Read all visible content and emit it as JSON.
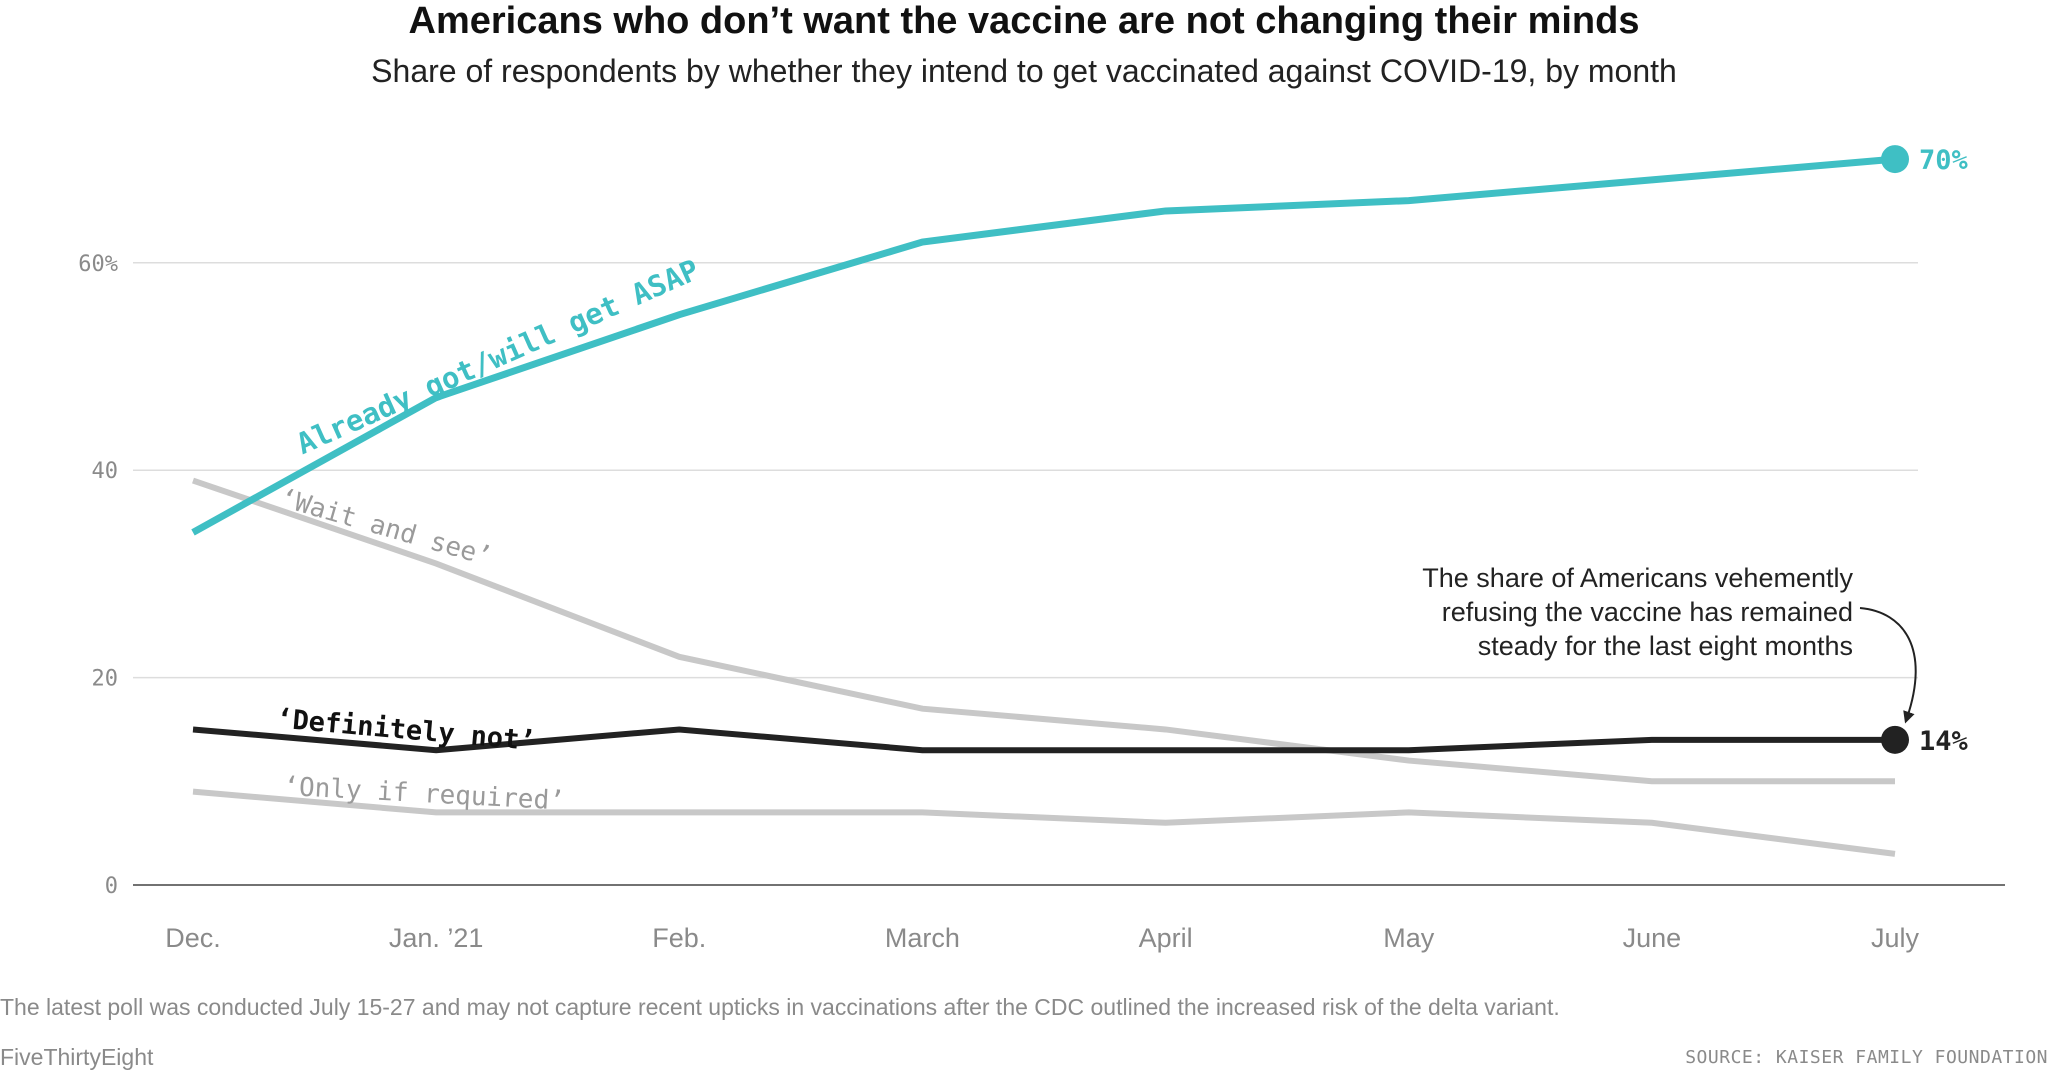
{
  "title": "Americans who don’t want the vaccine are not changing their minds",
  "subtitle": "Share of respondents by whether they intend to get vaccinated against COVID-19, by month",
  "note": "The latest poll was conducted July 15-27 and may not capture recent upticks in vaccinations after the CDC outlined the increased risk of the delta variant.",
  "brand": "FiveThirtyEight",
  "source": "SOURCE: KAISER FAMILY FOUNDATION",
  "chart_data": {
    "type": "line",
    "title": "Americans who don’t want the vaccine are not changing their minds",
    "subtitle": "Share of respondents by whether they intend to get vaccinated against COVID-19, by month",
    "xlabel": "",
    "ylabel": "",
    "categories": [
      "Dec.",
      "Jan. ’21",
      "Feb.",
      "March",
      "April",
      "May",
      "June",
      "July"
    ],
    "ylim": [
      0,
      70
    ],
    "yticks": [
      0,
      20,
      40,
      60
    ],
    "ytick_labels": [
      "0",
      "20",
      "40",
      "60%"
    ],
    "grid": true,
    "series": [
      {
        "name": "Already got/will get ASAP",
        "color": "#3fbfc4",
        "values": [
          34,
          47,
          55,
          62,
          65,
          66,
          68,
          70
        ],
        "end_label": "70%"
      },
      {
        "name": "‘Wait and see’",
        "color": "#c8c8c8",
        "values": [
          39,
          31,
          22,
          17,
          15,
          12,
          10,
          10
        ]
      },
      {
        "name": "‘Definitely not’",
        "color": "#222222",
        "values": [
          15,
          13,
          15,
          13,
          13,
          13,
          14,
          14
        ],
        "end_label": "14%"
      },
      {
        "name": "‘Only if required’",
        "color": "#c8c8c8",
        "values": [
          9,
          7,
          7,
          7,
          6,
          7,
          6,
          3
        ]
      }
    ],
    "annotation": {
      "lines": [
        "The share of Americans vehemently",
        "refusing the vaccine has remained",
        "steady for the last eight months"
      ]
    }
  }
}
